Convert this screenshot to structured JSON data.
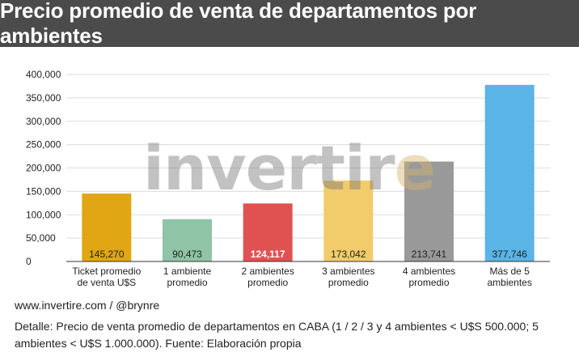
{
  "header": {
    "title": "Precio promedio de venta de departamentos por ambientes"
  },
  "chart_data": {
    "type": "bar",
    "categories": [
      [
        "Ticket promedio",
        "de venta U$S"
      ],
      [
        "1 ambiente",
        "promedio"
      ],
      [
        "2 ambientes",
        "promedio"
      ],
      [
        "3 ambientes",
        "promedio"
      ],
      [
        "4 ambientes",
        "promedio"
      ],
      [
        "Más de 5",
        "ambientes"
      ]
    ],
    "values": [
      145270,
      90473,
      124117,
      173042,
      213741,
      377746
    ],
    "value_labels": [
      "145,270",
      "90,473",
      "124,117",
      "173,042",
      "213,741",
      "377,746"
    ],
    "colors": [
      "#e0a614",
      "#8fc4a6",
      "#e05252",
      "#f2cc6b",
      "#999999",
      "#5ab4e5"
    ],
    "value_label_colors": [
      "#222222",
      "#222222",
      "#ffffff",
      "#222222",
      "#222222",
      "#222222"
    ],
    "yticks": [
      "0",
      "50,000",
      "100,000",
      "150,000",
      "200,000",
      "250,000",
      "300,000",
      "350,000",
      "400,000"
    ],
    "ylim": [
      0,
      400000
    ],
    "grid": true,
    "title": "Precio promedio de venta de departamentos por ambientes",
    "xlabel": "",
    "ylabel": ""
  },
  "watermark": {
    "part1": "invertir",
    "part2": "e"
  },
  "footer": {
    "website": "www.invertire.com / @brynre",
    "detail": "Detalle: Precio de venta promedio de departamentos en CABA (1 / 2 / 3 y 4 ambientes < U$S 500.000; 5 ambientes  < U$S 1.000.000). Fuente: Elaboración propia"
  }
}
